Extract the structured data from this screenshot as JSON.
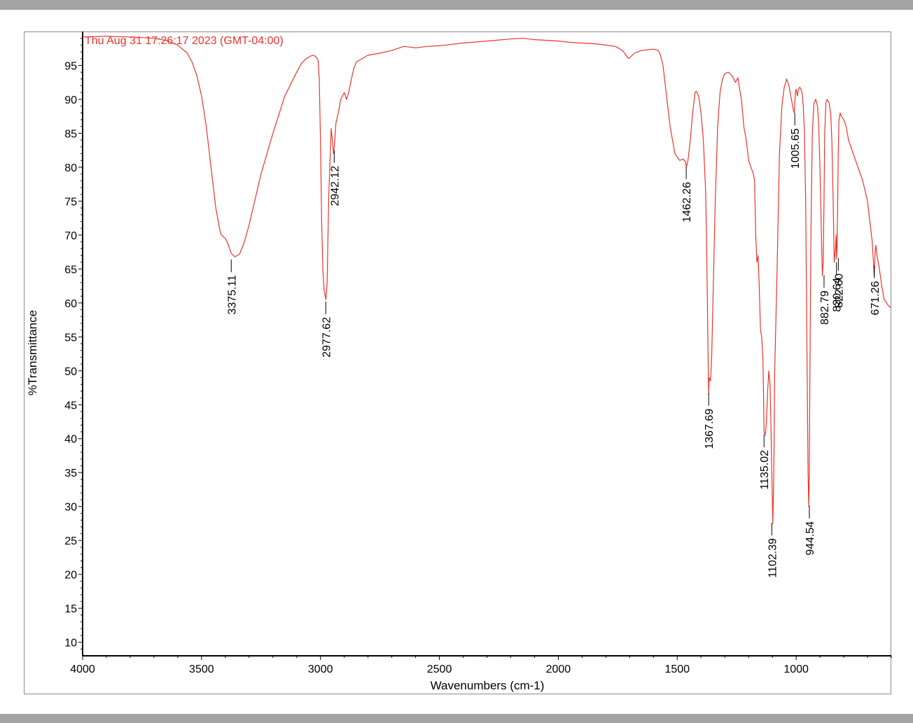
{
  "window": {
    "background": "#a3a3a3",
    "sheet": "#ffffff"
  },
  "chart_data": {
    "type": "line",
    "timestamp": "Thu Aug 31 17:26:17 2023 (GMT-04:00)",
    "xlabel": "Wavenumbers (cm-1)",
    "ylabel": "%Transmittance",
    "xlim": [
      4000,
      600
    ],
    "ylim": [
      8,
      100
    ],
    "x_ticks": [
      4000,
      3500,
      3000,
      2500,
      2000,
      1500,
      1000
    ],
    "y_ticks": [
      10,
      15,
      20,
      25,
      30,
      35,
      40,
      45,
      50,
      55,
      60,
      65,
      70,
      75,
      80,
      85,
      90,
      95
    ],
    "x_reversed": true,
    "grid": false,
    "line_color": "#e8352b",
    "series": [
      {
        "x": [
          4000,
          3900,
          3800,
          3700,
          3650,
          3600,
          3560,
          3540,
          3520,
          3500,
          3480,
          3460,
          3440,
          3420,
          3410,
          3400,
          3390,
          3380,
          3375,
          3360,
          3340,
          3320,
          3300,
          3280,
          3250,
          3200,
          3150,
          3100,
          3080,
          3060,
          3040,
          3030,
          3020,
          3010,
          3005,
          3000,
          2995,
          2990,
          2985,
          2980,
          2977,
          2972,
          2965,
          2955,
          2950,
          2945,
          2942,
          2935,
          2925,
          2915,
          2900,
          2895,
          2890,
          2880,
          2870,
          2860,
          2850,
          2800,
          2750,
          2700,
          2650,
          2600,
          2550,
          2500,
          2400,
          2300,
          2200,
          2150,
          2100,
          2050,
          2000,
          1950,
          1900,
          1850,
          1800,
          1760,
          1730,
          1715,
          1705,
          1695,
          1680,
          1650,
          1600,
          1580,
          1570,
          1560,
          1550,
          1530,
          1510,
          1490,
          1475,
          1465,
          1462,
          1455,
          1445,
          1435,
          1425,
          1420,
          1410,
          1400,
          1390,
          1380,
          1375,
          1370,
          1368,
          1366,
          1360,
          1355,
          1350,
          1340,
          1330,
          1320,
          1310,
          1300,
          1285,
          1270,
          1255,
          1245,
          1240,
          1230,
          1220,
          1210,
          1200,
          1190,
          1180,
          1175,
          1170,
          1165,
          1160,
          1155,
          1150,
          1145,
          1140,
          1137,
          1135,
          1130,
          1125,
          1120,
          1115,
          1110,
          1106,
          1102,
          1098,
          1094,
          1090,
          1080,
          1070,
          1060,
          1050,
          1040,
          1030,
          1020,
          1012,
          1008,
          1006,
          1003,
          1000,
          995,
          990,
          985,
          980,
          975,
          970,
          965,
          960,
          955,
          950,
          947,
          945,
          942,
          938,
          932,
          925,
          918,
          910,
          905,
          900,
          895,
          890,
          886,
          883,
          880,
          875,
          870,
          862,
          855,
          850,
          845,
          840,
          835,
          832,
          830,
          828,
          825,
          823,
          820,
          815,
          810,
          800,
          790,
          780,
          760,
          740,
          720,
          700,
          690,
          680,
          675,
          672,
          670,
          668,
          665,
          660,
          650,
          640,
          630,
          620,
          610,
          600
        ],
        "y": [
          99.2,
          99.3,
          99.2,
          99.0,
          98.7,
          98.0,
          96.8,
          95.5,
          93.5,
          90.5,
          86.0,
          80.0,
          74.0,
          70.2,
          69.8,
          69.5,
          68.8,
          67.8,
          67.3,
          66.8,
          67.2,
          69.0,
          71.5,
          74.5,
          79.0,
          85.0,
          90.5,
          94.0,
          95.3,
          96.0,
          96.4,
          96.5,
          96.3,
          95.8,
          93.0,
          84.0,
          72.0,
          65.0,
          62.0,
          61.0,
          60.5,
          63.0,
          76.0,
          85.7,
          84.0,
          82.0,
          83.0,
          86.5,
          88.0,
          90.0,
          91.0,
          90.5,
          90.0,
          91.2,
          93.0,
          94.5,
          95.5,
          96.5,
          96.8,
          97.2,
          97.8,
          97.6,
          97.8,
          97.9,
          98.3,
          98.6,
          98.9,
          99.0,
          98.8,
          98.7,
          98.6,
          98.4,
          98.3,
          98.2,
          98.0,
          97.8,
          97.2,
          96.5,
          96.0,
          96.3,
          96.8,
          97.2,
          97.4,
          97.2,
          96.5,
          95.0,
          92.0,
          86.0,
          82.0,
          81.0,
          81.2,
          80.8,
          80.0,
          81.0,
          84.0,
          88.0,
          91.0,
          91.2,
          90.5,
          88.0,
          84.0,
          76.0,
          65.0,
          52.0,
          46.5,
          49.0,
          48.5,
          52.0,
          60.0,
          75.0,
          86.0,
          91.0,
          93.0,
          93.8,
          94.0,
          93.5,
          92.5,
          93.2,
          92.0,
          90.0,
          86.0,
          84.0,
          81.0,
          80.0,
          79.0,
          78.0,
          70.0,
          66.0,
          67.0,
          62.0,
          56.0,
          55.0,
          52.0,
          46.0,
          41.0,
          40.5,
          42.5,
          47.0,
          50.0,
          48.0,
          42.0,
          34.0,
          27.5,
          35.0,
          50.0,
          65.0,
          82.0,
          89.0,
          91.8,
          93.0,
          92.0,
          90.0,
          88.5,
          88.0,
          89.5,
          91.0,
          91.5,
          90.5,
          91.5,
          91.8,
          91.5,
          91.0,
          89.0,
          85.0,
          75.0,
          55.0,
          35.0,
          30.0,
          34.0,
          50.0,
          70.0,
          85.0,
          89.5,
          90.0,
          89.0,
          86.0,
          80.0,
          72.0,
          64.0,
          66.0,
          75.0,
          85.0,
          89.5,
          90.0,
          89.5,
          88.0,
          84.0,
          76.0,
          66.0,
          68.0,
          70.0,
          66.5,
          68.0,
          76.0,
          82.0,
          87.0,
          88.0,
          87.5,
          87.0,
          86.0,
          84.0,
          82.0,
          80.0,
          78.0,
          75.0,
          72.0,
          69.0,
          66.0,
          64.0,
          65.5,
          67.5,
          68.5,
          67.0,
          65.0,
          62.5,
          60.5,
          60.0,
          59.5,
          59.3
        ]
      }
    ],
    "peaks": [
      {
        "x": 3375.11,
        "y": 66.4,
        "label": "3375.11"
      },
      {
        "x": 2977.62,
        "y": 60.2,
        "label": "2977.62"
      },
      {
        "x": 2942.12,
        "y": 82.5,
        "label": "2942.12"
      },
      {
        "x": 1462.26,
        "y": 80.1,
        "label": "1462.26"
      },
      {
        "x": 1367.69,
        "y": 46.7,
        "label": "1367.69"
      },
      {
        "x": 1135.02,
        "y": 40.6,
        "label": "1135.02"
      },
      {
        "x": 1102.39,
        "y": 27.6,
        "label": "1102.39"
      },
      {
        "x": 1005.65,
        "y": 88.0,
        "label": "1005.65"
      },
      {
        "x": 944.54,
        "y": 30.1,
        "label": "944.54"
      },
      {
        "x": 882.79,
        "y": 64.1,
        "label": "882.79"
      },
      {
        "x": 830.64,
        "y": 66.0,
        "label": "830.64"
      },
      {
        "x": 822.6,
        "y": 66.6,
        "label": "822.60"
      },
      {
        "x": 671.26,
        "y": 65.5,
        "label": "671.26"
      }
    ]
  }
}
